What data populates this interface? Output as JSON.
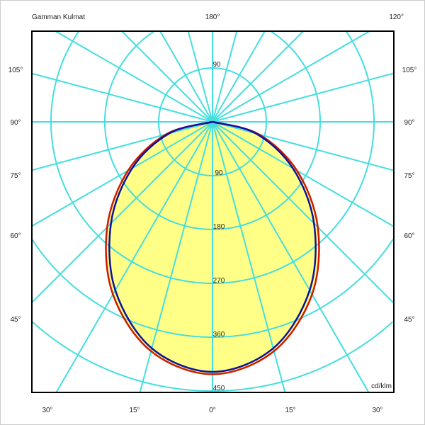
{
  "title": "Gamman Kulmat",
  "unit": "cd/klm",
  "top_labels": {
    "center": "180°",
    "right": "120°"
  },
  "side_labels": [
    "105°",
    "90°",
    "75°",
    "60°",
    "45°"
  ],
  "bottom_labels": [
    "30°",
    "15°",
    "0°",
    "15°",
    "30°"
  ],
  "ring_labels_upper": [
    "90"
  ],
  "ring_labels_lower": [
    "90",
    "180",
    "270",
    "360",
    "450"
  ],
  "colors": {
    "grid": "#44dede",
    "fill": "#ffff88",
    "curve_c0": "#cc1a00",
    "curve_c90": "#1010a0",
    "frame": "#000000"
  },
  "chart_data": {
    "type": "polar",
    "ring_values": [
      90,
      180,
      270,
      360,
      450
    ],
    "radial_step_deg": 15,
    "gamma": [
      0,
      15,
      30,
      45,
      60,
      75,
      90
    ],
    "series": [
      {
        "color": "#cc1a00",
        "values": [
          422,
          397,
          333,
          249,
          163,
          80,
          0
        ]
      },
      {
        "color": "#1010a0",
        "values": [
          418,
          392,
          325,
          240,
          155,
          75,
          0
        ]
      }
    ]
  }
}
